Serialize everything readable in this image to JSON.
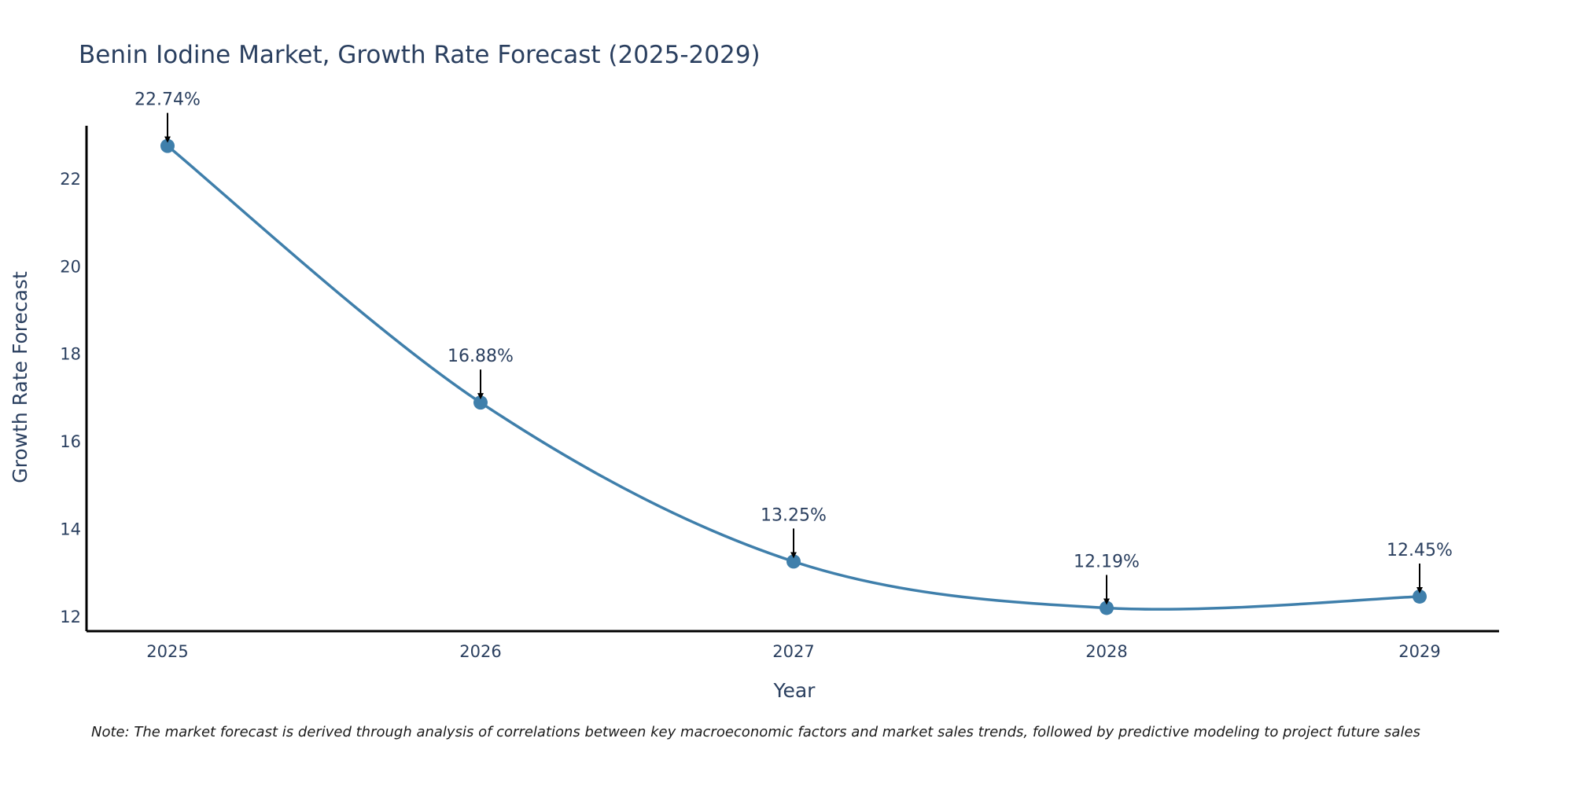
{
  "chart_data": {
    "type": "line",
    "title": "Benin Iodine Market, Growth Rate Forecast (2025-2029)",
    "xlabel": "Year",
    "ylabel": "Growth Rate Forecast",
    "categories": [
      "2025",
      "2026",
      "2027",
      "2028",
      "2029"
    ],
    "series": [
      {
        "name": "Growth Rate Forecast",
        "values": [
          22.74,
          16.88,
          13.25,
          12.19,
          12.45
        ]
      }
    ],
    "data_labels": [
      "22.74%",
      "16.88%",
      "13.25%",
      "12.19%",
      "12.45%"
    ],
    "yticks": [
      12,
      14,
      16,
      18,
      20,
      22
    ],
    "ylim": [
      11.66,
      23.2
    ],
    "grid": false,
    "line_color": "#3f7fab",
    "marker_color": "#3f7fab",
    "arrow_color": "#000000"
  },
  "note": "Note: The market forecast is derived through analysis of correlations between key macroeconomic factors and market sales trends, followed by predictive modeling to project future sales"
}
